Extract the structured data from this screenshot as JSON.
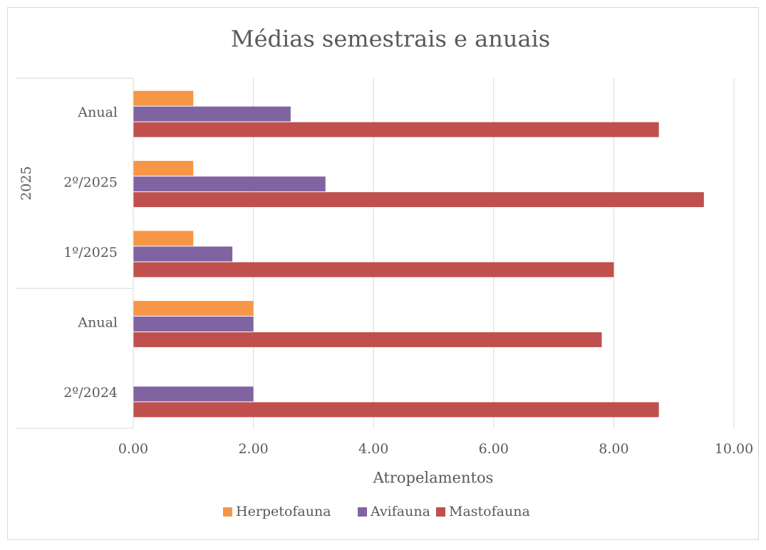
{
  "chart_data": {
    "type": "bar",
    "orientation": "horizontal",
    "title": "Médias semestrais e anuais",
    "x_label": "Atropelamentos",
    "categories": [
      "2º/2024",
      "Anual",
      "1º/2025",
      "2º/2025",
      "Anual"
    ],
    "groups": [
      {
        "label": null,
        "size": 2
      },
      {
        "label": "2025",
        "size": 3
      }
    ],
    "series": [
      {
        "name": "Herpetofauna",
        "color": "#f79646",
        "values": [
          null,
          2.0,
          1.0,
          1.0,
          1.0
        ]
      },
      {
        "name": "Avifauna",
        "color": "#8064a2",
        "values": [
          2.0,
          2.0,
          1.65,
          3.2,
          2.62
        ]
      },
      {
        "name": "Mastofauna",
        "color": "#c0504d",
        "values": [
          8.75,
          7.8,
          8.0,
          9.5,
          8.75
        ]
      }
    ],
    "xlim": [
      0,
      10
    ],
    "xticks": [
      {
        "value": 0,
        "label": "0.00"
      },
      {
        "value": 2,
        "label": "2.00"
      },
      {
        "value": 4,
        "label": "4.00"
      },
      {
        "value": 6,
        "label": "6.00"
      },
      {
        "value": 8,
        "label": "8.00"
      },
      {
        "value": 10,
        "label": "10.00"
      }
    ],
    "grid": true,
    "legend": "bottom"
  }
}
